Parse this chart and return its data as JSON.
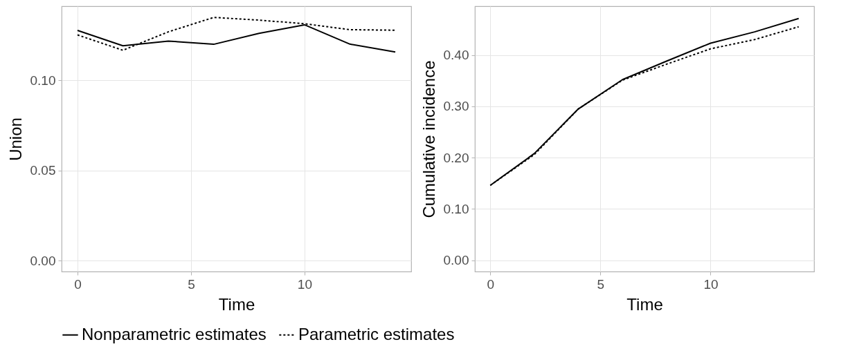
{
  "chart_data": [
    {
      "type": "line",
      "xlabel": "Time",
      "ylabel": "Union",
      "x": [
        0,
        2,
        4,
        6,
        8,
        10,
        12,
        14
      ],
      "xlim": [
        -0.7,
        14.7
      ],
      "xticks": [
        0,
        5,
        10
      ],
      "ylim": [
        -0.006,
        0.141
      ],
      "yticks": [
        {
          "value": 0,
          "label": "0.00"
        },
        {
          "value": 0.05,
          "label": "0.05"
        },
        {
          "value": 0.1,
          "label": "0.10"
        }
      ],
      "grid": true,
      "legend": "bottom",
      "series": [
        {
          "name": "Nonparametric estimates",
          "color": "#000000",
          "line_style": "solid",
          "values": [
            0.1276,
            0.1191,
            0.1217,
            0.1199,
            0.126,
            0.1307,
            0.12,
            0.1156
          ]
        },
        {
          "name": "Parametric estimates",
          "color": "#000000",
          "line_style": "dashed",
          "values": [
            0.1251,
            0.1166,
            0.1268,
            0.1348,
            0.1333,
            0.1313,
            0.128,
            0.1277
          ]
        }
      ]
    },
    {
      "type": "line",
      "xlabel": "Time",
      "ylabel": "Cumulative incidence",
      "x": [
        0,
        2,
        4,
        6,
        8,
        10,
        12,
        14
      ],
      "xlim": [
        -0.7,
        14.7
      ],
      "xticks": [
        0,
        5,
        10
      ],
      "ylim": [
        -0.022,
        0.495
      ],
      "yticks": [
        {
          "value": 0,
          "label": "0.00"
        },
        {
          "value": 0.1,
          "label": "0.10"
        },
        {
          "value": 0.2,
          "label": "0.20"
        },
        {
          "value": 0.3,
          "label": "0.30"
        },
        {
          "value": 0.4,
          "label": "0.40"
        }
      ],
      "grid": true,
      "legend": "bottom",
      "series": [
        {
          "name": "Nonparametric estimates",
          "color": "#000000",
          "line_style": "solid",
          "values": [
            0.146,
            0.208,
            0.295,
            0.352,
            0.388,
            0.423,
            0.445,
            0.471
          ]
        },
        {
          "name": "Parametric estimates",
          "color": "#000000",
          "line_style": "dashed",
          "values": [
            0.146,
            0.206,
            0.295,
            0.351,
            0.382,
            0.412,
            0.43,
            0.455
          ]
        }
      ]
    }
  ]
}
